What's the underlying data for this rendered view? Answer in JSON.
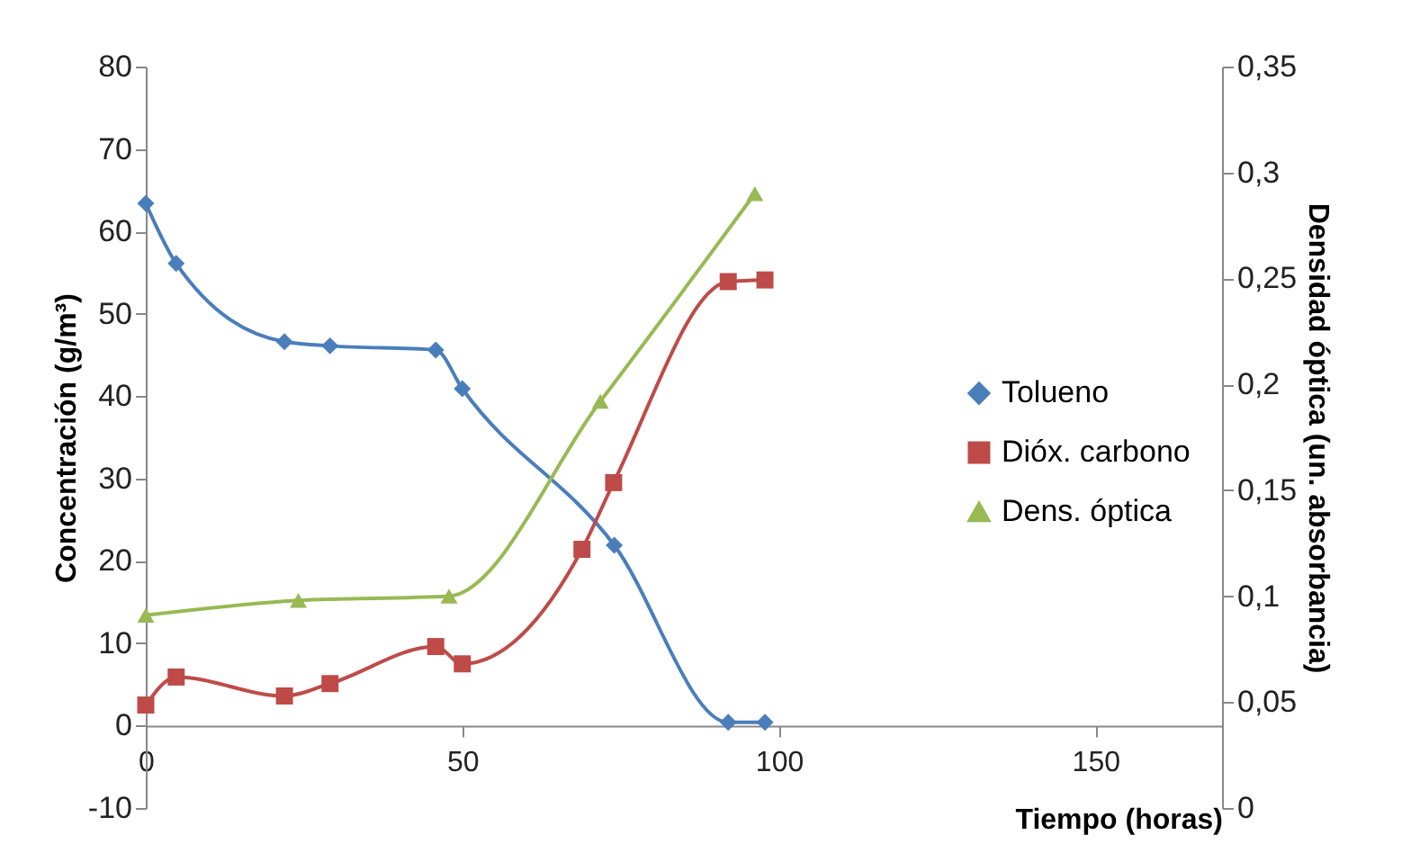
{
  "chart_data": {
    "type": "line",
    "xlabel": "Tiempo (horas)",
    "ylabel": "Concentración (g/m³)",
    "y2label": "Densidad óptica (un. absorbancia)",
    "xlim": [
      0,
      170
    ],
    "xticks": [
      0,
      50,
      100,
      150
    ],
    "ylim": [
      -10,
      80
    ],
    "yticks": [
      -10,
      0,
      10,
      20,
      30,
      40,
      50,
      60,
      70,
      80
    ],
    "y2lim": [
      0,
      0.35
    ],
    "y2ticks": [
      0,
      {
        "value": 0.05,
        "label": "0,05"
      },
      {
        "value": 0.1,
        "label": "0,1"
      },
      {
        "value": 0.15,
        "label": "0,15"
      },
      {
        "value": 0.2,
        "label": "0,2"
      },
      {
        "value": 0.25,
        "label": "0,25"
      },
      {
        "value": 0.3,
        "label": "0,3"
      },
      {
        "value": 0.35,
        "label": "0,35"
      }
    ],
    "legend": "right",
    "grid": false,
    "series": [
      {
        "name": "Tolueno",
        "color": "#4a7ebb",
        "marker": "diamond",
        "x": [
          0,
          4.8,
          21.9,
          29.1,
          45.8,
          50,
          74,
          92,
          97.8
        ],
        "values": [
          63.4,
          56.1,
          46.6,
          46.1,
          45.6,
          40.9,
          21.9,
          0.4,
          0.4
        ]
      },
      {
        "name": "Dióx. carbono",
        "color": "#be4b48",
        "marker": "square",
        "x": [
          0,
          4.8,
          21.9,
          29.1,
          45.8,
          50,
          68.9,
          73.9,
          92,
          97.8
        ],
        "values": [
          2.5,
          5.9,
          3.6,
          5.1,
          9.6,
          7.5,
          21.4,
          29.5,
          53.9,
          54.1
        ]
      },
      {
        "name": "Dens. óptica",
        "color": "#98b954",
        "marker": "triangle",
        "axis": "y2",
        "x": [
          0,
          24.1,
          47.9,
          71.8,
          96.2
        ],
        "values": [
          0.091,
          0.098,
          0.1,
          0.192,
          0.29
        ]
      }
    ]
  }
}
